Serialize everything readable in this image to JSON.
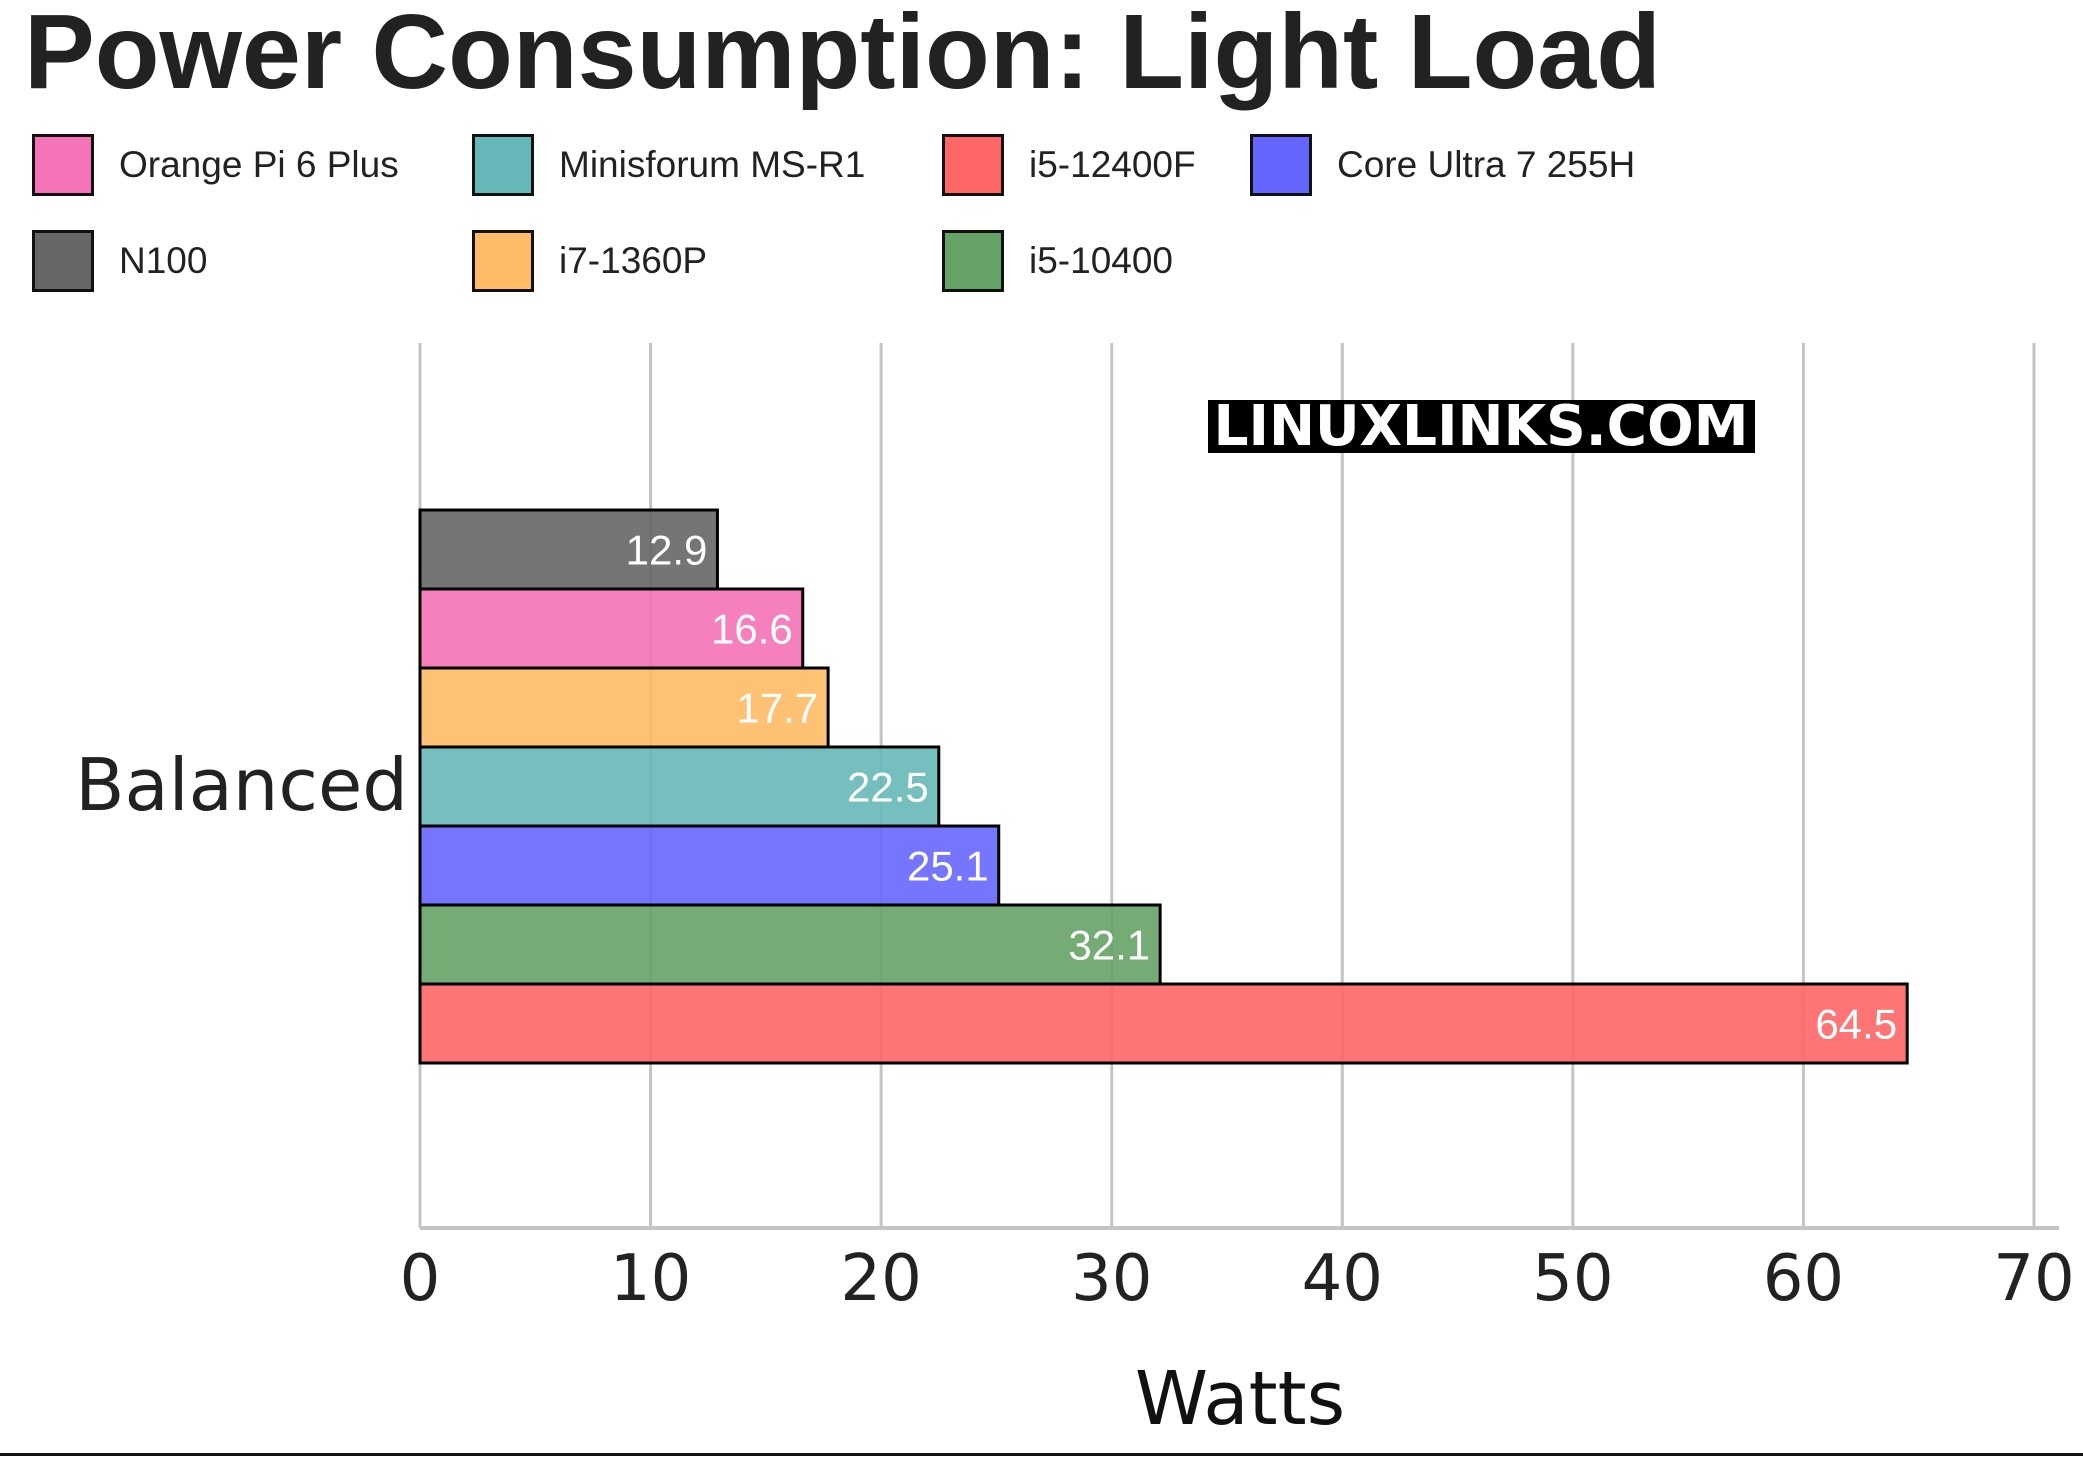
{
  "chart_data": {
    "type": "bar",
    "orientation": "horizontal",
    "title": "Power Consumption: Light Load",
    "xlabel": "Watts",
    "ylabel": "",
    "categories": [
      "Balanced"
    ],
    "xlim": [
      0,
      70
    ],
    "xticks": [
      "0",
      "10",
      "20",
      "30",
      "40",
      "50",
      "60",
      "70"
    ],
    "grid": true,
    "legend_position": "top",
    "watermark": "LINUXLINKS.COM",
    "legend": [
      {
        "name": "Orange Pi 6 Plus",
        "color": "#f472b6"
      },
      {
        "name": "Minisforum MS-R1",
        "color": "#66b8b8"
      },
      {
        "name": "i5-12400F",
        "color": "#ff6666"
      },
      {
        "name": "Core Ultra 7 255H",
        "color": "#6666ff"
      },
      {
        "name": "N100",
        "color": "#666666"
      },
      {
        "name": "i7-1360P",
        "color": "#ffbb66"
      },
      {
        "name": "i5-10400",
        "color": "#66a366"
      }
    ],
    "series": [
      {
        "name": "N100",
        "values": [
          12.9
        ],
        "color": "#666666"
      },
      {
        "name": "Orange Pi 6 Plus",
        "values": [
          16.6
        ],
        "color": "#f472b6"
      },
      {
        "name": "i7-1360P",
        "values": [
          17.7
        ],
        "color": "#ffbb66"
      },
      {
        "name": "Minisforum MS-R1",
        "values": [
          22.5
        ],
        "color": "#66b8b8"
      },
      {
        "name": "Core Ultra 7 255H",
        "values": [
          25.1
        ],
        "color": "#6666ff"
      },
      {
        "name": "i5-10400",
        "values": [
          32.1
        ],
        "color": "#66a366"
      },
      {
        "name": "i5-12400F",
        "values": [
          64.5
        ],
        "color": "#ff6666"
      }
    ]
  }
}
